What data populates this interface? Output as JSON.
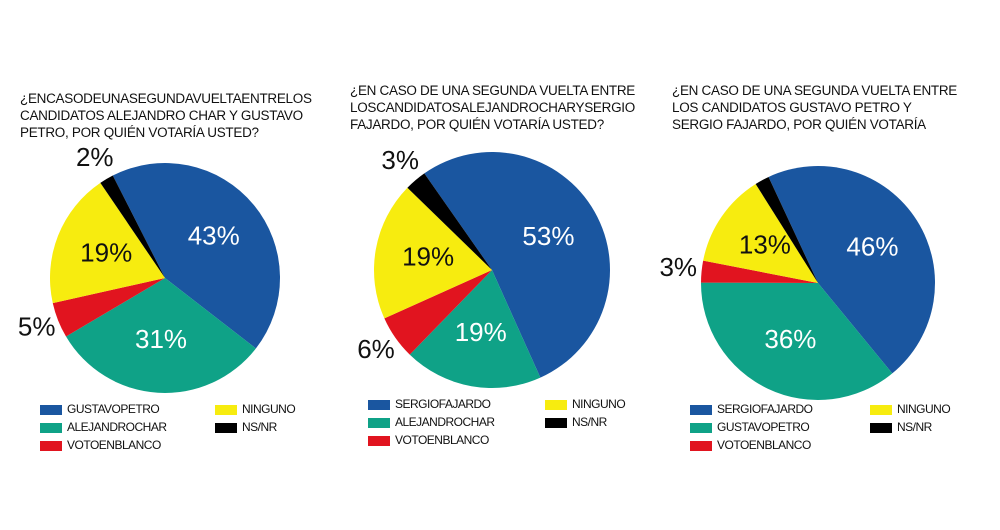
{
  "chart_data": [
    {
      "type": "pie",
      "title": "¿ENCASODEUNASEGUNDAVUELTAENTRELOS CANDIDATOS ALEJANDRO CHAR Y GUSTAVO PETRO, POR QUIÉN VOTARÍA USTED?",
      "categories": [
        "GUSTAVOPETRO",
        "ALEJANDROCHAR",
        "VOTOENBLANCO",
        "NINGUNO",
        "NS/NR"
      ],
      "values": [
        43,
        31,
        5,
        19,
        2
      ],
      "value_labels": [
        "43%",
        "31%",
        "5%",
        "19%",
        "2%"
      ],
      "colors": [
        "#1a56a0",
        "#0fa287",
        "#e1141f",
        "#f7ec0f",
        "#000000"
      ]
    },
    {
      "type": "pie",
      "title": "¿EN CASO DE UNA SEGUNDA VUELTA ENTRE LOSCANDIDATOSALEJANDROCHARYSERGIO FAJARDO, POR QUIÉN VOTARÍA USTED?",
      "categories": [
        "SERGIOFAJARDO",
        "ALEJANDROCHAR",
        "VOTOENBLANCO",
        "NINGUNO",
        "NS/NR"
      ],
      "values": [
        53,
        19,
        6,
        19,
        3
      ],
      "value_labels": [
        "53%",
        "19%",
        "6%",
        "19%",
        "3%"
      ],
      "colors": [
        "#1a56a0",
        "#0fa287",
        "#e1141f",
        "#f7ec0f",
        "#000000"
      ]
    },
    {
      "type": "pie",
      "title": "¿EN CASO DE UNA SEGUNDA VUELTA ENTRE LOS CANDIDATOS GUSTAVO PETRO Y SERGIO FAJARDO, POR QUIÉN VOTARÍA",
      "categories": [
        "SERGIOFAJARDO",
        "GUSTAVOPETRO",
        "VOTOENBLANCO",
        "NINGUNO",
        "NS/NR"
      ],
      "values": [
        46,
        36,
        3,
        13,
        2
      ],
      "value_labels": [
        "46%",
        "36%",
        "3%",
        "13%",
        null
      ],
      "colors": [
        "#1a56a0",
        "#0fa287",
        "#e1141f",
        "#f7ec0f",
        "#000000"
      ]
    }
  ]
}
